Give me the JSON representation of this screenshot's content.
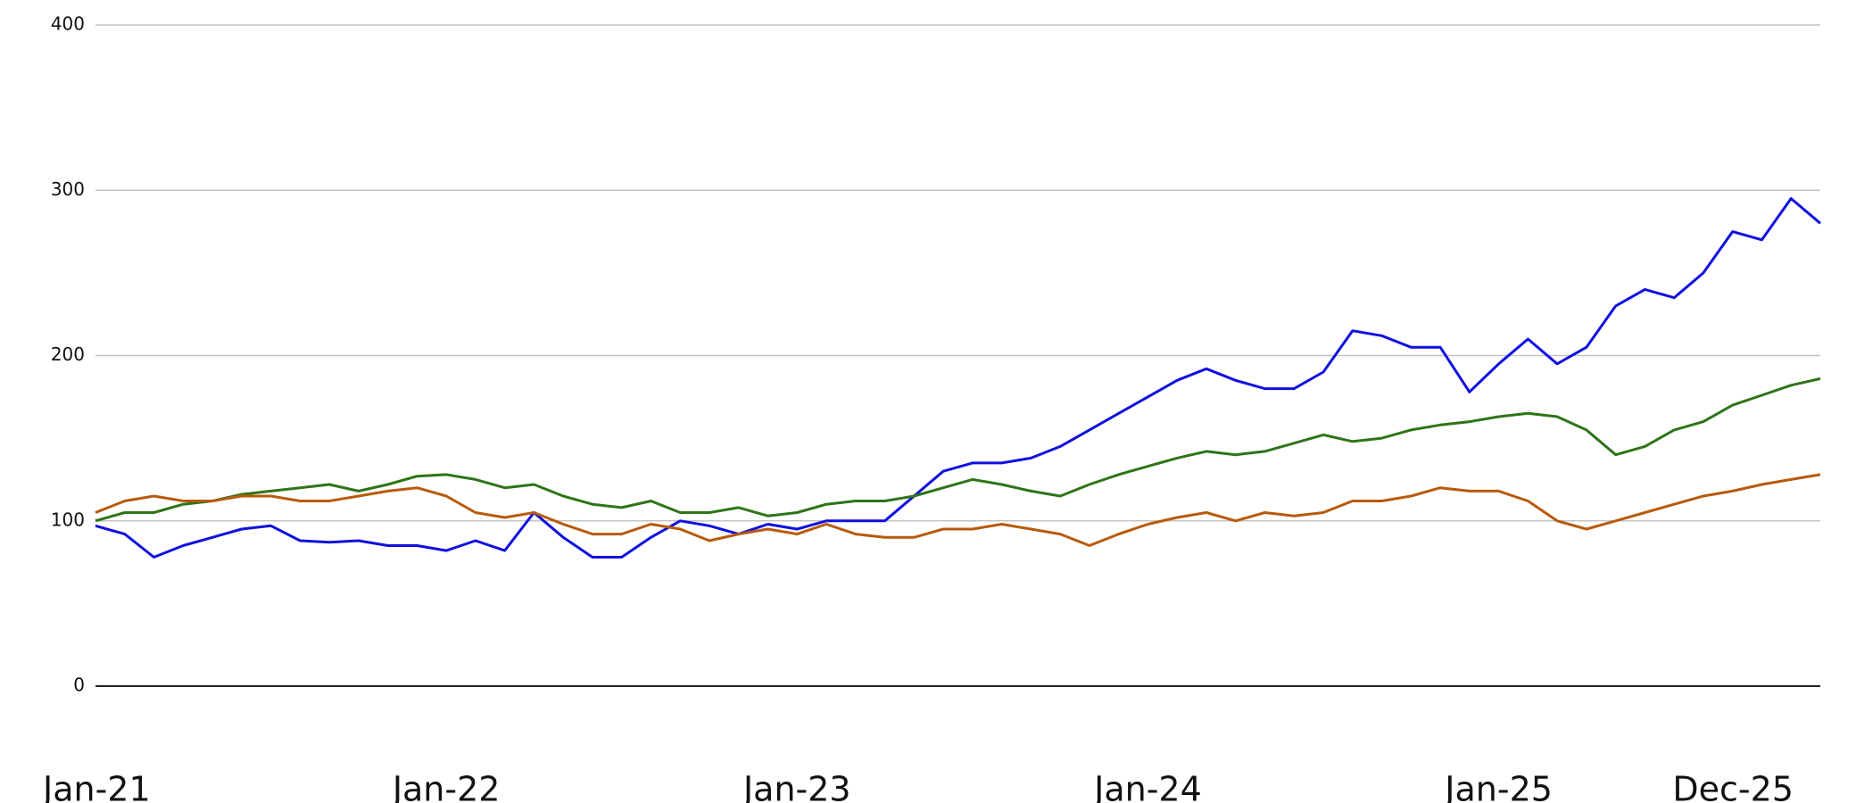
{
  "chart_data": {
    "type": "line",
    "categories": [
      "Jan-21",
      null,
      null,
      null,
      null,
      null,
      null,
      null,
      null,
      null,
      null,
      null,
      "Jan-22",
      null,
      null,
      null,
      null,
      null,
      null,
      null,
      null,
      null,
      null,
      null,
      "Jan-23",
      null,
      null,
      null,
      null,
      null,
      null,
      null,
      null,
      null,
      null,
      null,
      "Jan-24",
      null,
      null,
      null,
      null,
      null,
      null,
      null,
      null,
      null,
      null,
      null,
      "Jan-25",
      null,
      null,
      null,
      null,
      null,
      null,
      null,
      null,
      null,
      null,
      "Dec-25"
    ],
    "series": [
      {
        "color": "#1010e0",
        "values": [
          97,
          92,
          78,
          85,
          90,
          95,
          97,
          88,
          87,
          88,
          85,
          85,
          82,
          88,
          82,
          105,
          90,
          78,
          78,
          90,
          100,
          97,
          92,
          98,
          95,
          100,
          100,
          100,
          115,
          130,
          135,
          135,
          138,
          145,
          155,
          165,
          175,
          185,
          192,
          185,
          180,
          180,
          190,
          215,
          212,
          205,
          205,
          178,
          195,
          210,
          195,
          205,
          230,
          240,
          235,
          250,
          275,
          270,
          295,
          280
        ]
      },
      {
        "color": "#2e7418",
        "values": [
          100,
          105,
          105,
          110,
          112,
          116,
          118,
          120,
          122,
          118,
          122,
          127,
          128,
          125,
          120,
          122,
          115,
          110,
          108,
          112,
          105,
          105,
          108,
          103,
          105,
          110,
          112,
          112,
          115,
          120,
          125,
          122,
          118,
          115,
          122,
          128,
          133,
          138,
          142,
          140,
          142,
          147,
          152,
          148,
          150,
          155,
          158,
          160,
          163,
          165,
          163,
          155,
          140,
          145,
          155,
          160,
          170,
          176,
          182,
          186
        ]
      },
      {
        "color": "#b85a0c",
        "values": [
          105,
          112,
          115,
          112,
          112,
          115,
          115,
          112,
          112,
          115,
          118,
          120,
          115,
          105,
          102,
          105,
          98,
          92,
          92,
          98,
          95,
          88,
          92,
          95,
          92,
          98,
          92,
          90,
          90,
          95,
          95,
          98,
          95,
          92,
          85,
          92,
          98,
          102,
          105,
          100,
          105,
          103,
          105,
          112,
          112,
          115,
          120,
          118,
          118,
          112,
          100,
          95,
          100,
          105,
          110,
          115,
          118,
          122,
          125,
          128
        ]
      }
    ],
    "ylim": [
      0,
      400
    ],
    "yticks": [
      0,
      100,
      200,
      300,
      400
    ],
    "grid": true
  }
}
